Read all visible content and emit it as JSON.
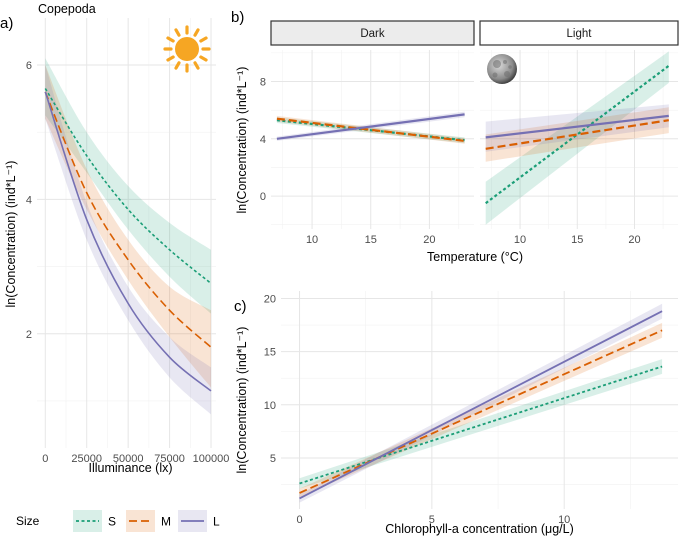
{
  "figure": {
    "title": "Copepoda",
    "panel_labels": [
      "a)",
      "b)",
      "c)"
    ],
    "legend": {
      "title": "Size",
      "entries": [
        {
          "key": "S",
          "label": "S",
          "color": "#1b9e77",
          "dash": "3,2.5"
        },
        {
          "key": "M",
          "label": "M",
          "color": "#d95f02",
          "dash": "8,4"
        },
        {
          "key": "L",
          "label": "L",
          "color": "#7570b3",
          "dash": ""
        }
      ]
    },
    "icons": {
      "panel_a": "sun-icon",
      "panel_b": "moon-icon"
    }
  },
  "chart_data": [
    {
      "id": "a",
      "type": "line",
      "title": "",
      "xlabel": "Illuminance (lx)",
      "ylabel": "ln(Concentration) (ind*L⁻¹)",
      "xlim": [
        -5000,
        103000
      ],
      "ylim": [
        0.3,
        6.7
      ],
      "xticks": [
        0,
        25000,
        50000,
        75000,
        100000
      ],
      "xtick_labels": [
        "0",
        "25000",
        "50000",
        "75000",
        "100000"
      ],
      "yticks": [
        2,
        4,
        6
      ],
      "ytick_labels": [
        "2",
        "4",
        "6"
      ],
      "series": [
        {
          "name": "S",
          "x": [
            0,
            25000,
            50000,
            75000,
            100000
          ],
          "y": [
            5.65,
            4.65,
            3.85,
            3.25,
            2.75
          ],
          "lower": [
            5.25,
            4.4,
            3.55,
            2.85,
            2.3
          ],
          "upper": [
            6.1,
            5.0,
            4.2,
            3.65,
            3.25
          ]
        },
        {
          "name": "M",
          "x": [
            0,
            25000,
            50000,
            75000,
            100000
          ],
          "y": [
            5.6,
            4.1,
            3.1,
            2.35,
            1.8
          ],
          "lower": [
            5.2,
            3.85,
            2.8,
            1.95,
            1.2
          ],
          "upper": [
            6.0,
            4.45,
            3.4,
            2.7,
            2.35
          ]
        },
        {
          "name": "L",
          "x": [
            0,
            25000,
            50000,
            75000,
            100000
          ],
          "y": [
            5.6,
            3.7,
            2.45,
            1.65,
            1.15
          ],
          "lower": [
            5.2,
            3.4,
            2.2,
            1.35,
            0.8
          ],
          "upper": [
            6.0,
            3.95,
            2.7,
            1.95,
            1.5
          ]
        }
      ]
    },
    {
      "id": "b-dark",
      "type": "line",
      "title": "Dark",
      "xlabel": "Temperature (°C)",
      "ylabel": "ln(Concentration) (ind*L⁻¹)",
      "xlim": [
        6.5,
        23.8
      ],
      "ylim": [
        -2.3,
        10.2
      ],
      "xticks": [
        10,
        15,
        20
      ],
      "xtick_labels": [
        "10",
        "15",
        "20"
      ],
      "yticks": [
        0,
        4,
        8
      ],
      "ytick_labels": [
        "0",
        "4",
        "8"
      ],
      "series": [
        {
          "name": "S",
          "x": [
            7,
            23
          ],
          "y": [
            5.3,
            3.9
          ],
          "lower": [
            5.1,
            3.7
          ],
          "upper": [
            5.5,
            4.1
          ]
        },
        {
          "name": "M",
          "x": [
            7,
            23
          ],
          "y": [
            5.4,
            3.85
          ],
          "lower": [
            5.2,
            3.65
          ],
          "upper": [
            5.6,
            4.05
          ]
        },
        {
          "name": "L",
          "x": [
            7,
            23
          ],
          "y": [
            4.0,
            5.7
          ],
          "lower": [
            3.85,
            5.5
          ],
          "upper": [
            4.15,
            5.9
          ]
        }
      ]
    },
    {
      "id": "b-light",
      "type": "line",
      "title": "Light",
      "xlabel": "Temperature (°C)",
      "ylabel": "ln(Concentration) (ind*L⁻¹)",
      "xlim": [
        6.5,
        23.8
      ],
      "ylim": [
        -2.3,
        10.2
      ],
      "xticks": [
        10,
        15,
        20
      ],
      "xtick_labels": [
        "10",
        "15",
        "20"
      ],
      "yticks": [
        0,
        4,
        8
      ],
      "ytick_labels": [
        "0",
        "4",
        "8"
      ],
      "series": [
        {
          "name": "S",
          "x": [
            7,
            23
          ],
          "y": [
            -0.5,
            9.1
          ],
          "lower": [
            -2.0,
            7.9
          ],
          "upper": [
            1.0,
            10.1
          ]
        },
        {
          "name": "M",
          "x": [
            7,
            23
          ],
          "y": [
            3.3,
            5.3
          ],
          "lower": [
            2.4,
            4.4
          ],
          "upper": [
            4.3,
            6.2
          ]
        },
        {
          "name": "L",
          "x": [
            7,
            23
          ],
          "y": [
            4.1,
            5.6
          ],
          "lower": [
            3.1,
            4.8
          ],
          "upper": [
            5.2,
            6.4
          ]
        }
      ]
    },
    {
      "id": "c",
      "type": "line",
      "title": "",
      "xlabel": "Chlorophyll-a concentration (μg/L)",
      "ylabel": "ln(Concentration) (ind*L⁻¹)",
      "xlim": [
        -0.7,
        14.3
      ],
      "ylim": [
        0.2,
        20.7
      ],
      "xticks": [
        0,
        5,
        10
      ],
      "xtick_labels": [
        "0",
        "5",
        "10"
      ],
      "yticks": [
        5,
        10,
        15,
        20
      ],
      "ytick_labels": [
        "5",
        "10",
        "15",
        "20"
      ],
      "series": [
        {
          "name": "S",
          "x": [
            0,
            13.7
          ],
          "y": [
            2.6,
            13.6
          ],
          "lower": [
            2.1,
            12.9
          ],
          "upper": [
            3.1,
            14.3
          ]
        },
        {
          "name": "M",
          "x": [
            0,
            13.7
          ],
          "y": [
            1.7,
            17.0
          ],
          "lower": [
            1.3,
            16.3
          ],
          "upper": [
            2.1,
            17.7
          ]
        },
        {
          "name": "L",
          "x": [
            0,
            13.7
          ],
          "y": [
            1.2,
            18.8
          ],
          "lower": [
            0.8,
            18.1
          ],
          "upper": [
            1.6,
            19.5
          ]
        }
      ]
    }
  ]
}
